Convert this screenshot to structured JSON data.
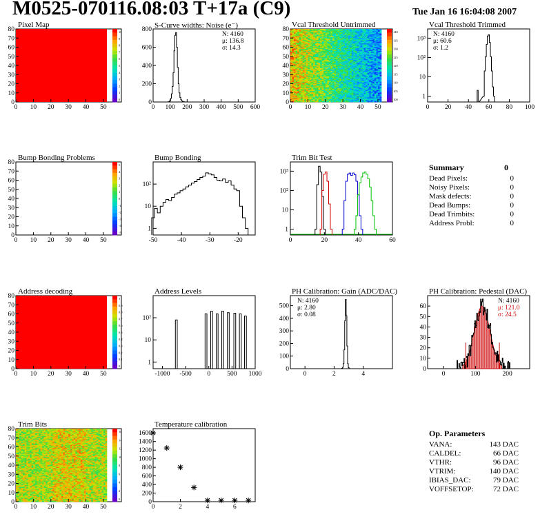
{
  "header": {
    "title": "M0525-070116.08:03 T+17a (C9)",
    "date": "Tue Jan 16 16:04:08 2007"
  },
  "panels": [
    {
      "title": "Pixel Map"
    },
    {
      "title": "S-Curve widths: Noise (e⁻)"
    },
    {
      "title": "Vcal Threshold Untrimmed"
    },
    {
      "title": "Vcal Threshold Trimmed"
    },
    {
      "title": "Bump Bonding Problems"
    },
    {
      "title": "Bump Bonding"
    },
    {
      "title": "Trim Bit Test"
    },
    {
      "title": "Address decoding"
    },
    {
      "title": "Address Levels"
    },
    {
      "title": "PH Calibration: Gain (ADC/DAC)"
    },
    {
      "title": "PH Calibration: Pedestal (DAC)"
    },
    {
      "title": "Trim Bits"
    },
    {
      "title": "Temperature calibration"
    }
  ],
  "summary": {
    "title": "Summary",
    "title_value": "0",
    "rows": [
      {
        "label": "Dead Pixels:",
        "value": "0"
      },
      {
        "label": "Noisy Pixels:",
        "value": "0"
      },
      {
        "label": "Mask defects:",
        "value": "0"
      },
      {
        "label": "Dead Bumps:",
        "value": "0"
      },
      {
        "label": "Dead Trimbits:",
        "value": "0"
      },
      {
        "label": "Address Probl:",
        "value": "0"
      }
    ]
  },
  "op_parameters": {
    "title": "Op. Parameters",
    "rows": [
      {
        "label": "VANA:",
        "value": "143 DAC"
      },
      {
        "label": "CALDEL:",
        "value": "66 DAC"
      },
      {
        "label": "VTHR:",
        "value": "96 DAC"
      },
      {
        "label": "VTRIM:",
        "value": "140 DAC"
      },
      {
        "label": "IBIAS_DAC:",
        "value": "79 DAC"
      },
      {
        "label": "VOFFSETOP:",
        "value": "72 DAC"
      }
    ]
  },
  "colors": {
    "map_red": "#ff0000",
    "line_black": "#000000",
    "trim_red": "#d00000",
    "trim_blue": "#0000d0",
    "trim_green": "#00c000",
    "pedestal_red": "#cc0000"
  },
  "chart_data": [
    {
      "id": "pixel_map",
      "type": "heatmap",
      "xlim": [
        0,
        52
      ],
      "ylim": [
        0,
        80
      ],
      "x_ticks": [
        "0",
        "10",
        "20",
        "30",
        "40",
        "50"
      ],
      "y_ticks": [
        "0",
        "10",
        "20",
        "30",
        "40",
        "50",
        "60",
        "70",
        "80"
      ],
      "fill": "uniform red",
      "palette_ticks": [
        "10",
        "9",
        "8",
        "7",
        "6",
        "5",
        "4",
        "3",
        "2",
        "1",
        "0"
      ]
    },
    {
      "id": "scurve",
      "type": "bar",
      "xlim": [
        0,
        600
      ],
      "ylim": [
        0,
        800
      ],
      "x_ticks": [
        "0",
        "100",
        "200",
        "300",
        "400",
        "500",
        "600"
      ],
      "y_ticks": [
        "0",
        "200",
        "400",
        "600",
        "800"
      ],
      "stats": [
        "N: 4160",
        "μ: 136.8",
        "σ: 14.3"
      ],
      "x": [
        90,
        95,
        100,
        105,
        110,
        115,
        120,
        125,
        130,
        135,
        140,
        145,
        150,
        155,
        160,
        165,
        170,
        175,
        180,
        185,
        190
      ],
      "values": [
        2,
        5,
        15,
        40,
        90,
        170,
        320,
        560,
        730,
        760,
        600,
        380,
        200,
        100,
        50,
        25,
        12,
        6,
        3,
        1,
        0
      ]
    },
    {
      "id": "vcal_untrimmed",
      "type": "heatmap",
      "xlim": [
        0,
        52
      ],
      "ylim": [
        0,
        80
      ],
      "x_ticks": [
        "0",
        "10",
        "20",
        "30",
        "40",
        "50"
      ],
      "y_ticks": [
        "0",
        "10",
        "20",
        "30",
        "40",
        "50",
        "60",
        "70",
        "80"
      ],
      "palette_ticks": [
        "140",
        "135",
        "130",
        "125",
        "120",
        "115",
        "110",
        "105",
        "100"
      ]
    },
    {
      "id": "vcal_trimmed",
      "type": "bar",
      "log_y": true,
      "xlim": [
        0,
        100
      ],
      "x_ticks": [
        "0",
        "20",
        "40",
        "60",
        "80",
        "100"
      ],
      "y_ticks": [
        "1",
        "10",
        "10²",
        "10³"
      ],
      "stats": [
        "N: 4160",
        "μ: 60.6",
        "σ: 1.2"
      ],
      "x": [
        49,
        50,
        55,
        56,
        57,
        58,
        59,
        60,
        61,
        62,
        63,
        64,
        65,
        66
      ],
      "values": [
        2,
        0,
        1,
        20,
        110,
        480,
        1300,
        1500,
        600,
        110,
        20,
        3,
        1,
        0
      ]
    },
    {
      "id": "bump_problems",
      "type": "heatmap",
      "xlim": [
        0,
        52
      ],
      "ylim": [
        0,
        80
      ],
      "x_ticks": [
        "0",
        "10",
        "20",
        "30",
        "40",
        "50"
      ],
      "y_ticks": [
        "0",
        "10",
        "20",
        "30",
        "40",
        "50",
        "60",
        "70",
        "80"
      ],
      "fill": "empty",
      "palette_ticks": [
        "5",
        "4",
        "3",
        "2",
        "1",
        "0",
        "-1",
        "-2",
        "-3",
        "-4",
        "-5"
      ]
    },
    {
      "id": "bump_bonding",
      "type": "bar",
      "log_y": true,
      "xlim": [
        -50,
        -14
      ],
      "x_ticks": [
        "-50",
        "-40",
        "-30",
        "-20"
      ],
      "y_ticks": [
        "1",
        "10",
        "10²"
      ],
      "x": [
        -50,
        -49,
        -48,
        -47,
        -46,
        -45,
        -44,
        -43,
        -42,
        -41,
        -40,
        -39,
        -38,
        -37,
        -36,
        -35,
        -34,
        -33,
        -32,
        -31,
        -30,
        -29,
        -28,
        -27,
        -26,
        -25,
        -24,
        -23,
        -22,
        -21,
        -20,
        -19,
        -18,
        -17,
        -16
      ],
      "values": [
        3,
        8,
        5,
        10,
        15,
        20,
        18,
        25,
        35,
        40,
        50,
        60,
        75,
        90,
        110,
        130,
        160,
        200,
        230,
        320,
        290,
        260,
        200,
        150,
        140,
        170,
        120,
        140,
        90,
        60,
        50,
        10,
        3,
        1,
        0.5
      ]
    },
    {
      "id": "trim_bit_test",
      "type": "line",
      "log_y": true,
      "xlim": [
        0,
        60
      ],
      "x_ticks": [
        "0",
        "20",
        "40",
        "60"
      ],
      "y_ticks": [
        "1",
        "10",
        "10²",
        "10³"
      ],
      "series": [
        {
          "color": "#000000",
          "x": [
            15,
            16,
            17,
            18,
            19,
            20
          ],
          "values": [
            1,
            200,
            1800,
            900,
            50,
            1
          ]
        },
        {
          "color": "#d00000",
          "x": [
            18,
            19,
            20,
            21,
            22,
            23,
            24
          ],
          "values": [
            1,
            100,
            700,
            900,
            300,
            20,
            1
          ]
        },
        {
          "color": "#0000d0",
          "x": [
            31,
            32,
            33,
            34,
            35,
            36,
            37,
            38,
            39,
            40,
            41,
            42
          ],
          "values": [
            1,
            30,
            300,
            700,
            800,
            600,
            800,
            650,
            300,
            60,
            5,
            1
          ]
        },
        {
          "color": "#00c000",
          "x": [
            38,
            39,
            40,
            41,
            42,
            43,
            44,
            45,
            46,
            47,
            48,
            49,
            50
          ],
          "values": [
            1,
            5,
            60,
            250,
            500,
            800,
            900,
            700,
            400,
            150,
            30,
            5,
            1
          ]
        }
      ]
    },
    {
      "id": "address_decoding",
      "type": "heatmap",
      "xlim": [
        0,
        52
      ],
      "ylim": [
        0,
        80
      ],
      "x_ticks": [
        "0",
        "10",
        "20",
        "30",
        "40",
        "50"
      ],
      "y_ticks": [
        "0",
        "10",
        "20",
        "30",
        "40",
        "50",
        "60",
        "70",
        "80"
      ],
      "fill": "uniform red",
      "palette_ticks": [
        "1",
        "0.9",
        "0.8",
        "0.7",
        "0.6",
        "0.5",
        "0.4",
        "0.3",
        "0.2",
        "0.1",
        "0"
      ]
    },
    {
      "id": "address_levels",
      "type": "bar",
      "log_y": true,
      "xlim": [
        -1200,
        1000
      ],
      "x_ticks": [
        "-1000",
        "-500",
        "0",
        "500",
        "1000"
      ],
      "y_ticks": [
        "1",
        "10",
        "10²"
      ],
      "peaks": [
        {
          "x": -700,
          "height": 80
        },
        {
          "x": -60,
          "height": 150
        },
        {
          "x": 60,
          "height": 200
        },
        {
          "x": 180,
          "height": 150
        },
        {
          "x": 300,
          "height": 200
        },
        {
          "x": 420,
          "height": 170
        },
        {
          "x": 560,
          "height": 160
        },
        {
          "x": 680,
          "height": 150
        },
        {
          "x": 790,
          "height": 120
        }
      ]
    },
    {
      "id": "ph_gain",
      "type": "bar",
      "xlim": [
        -1,
        6
      ],
      "ylim": [
        0,
        580
      ],
      "x_ticks": [
        "0",
        "2",
        "4"
      ],
      "y_ticks": [
        "0",
        "100",
        "200",
        "300",
        "400",
        "500"
      ],
      "stats": [
        "N: 4160",
        "μ: 2.80",
        "σ: 0.08"
      ],
      "x": [
        2.55,
        2.6,
        2.65,
        2.7,
        2.75,
        2.8,
        2.85,
        2.9,
        2.95,
        3.0,
        3.05
      ],
      "values": [
        3,
        10,
        40,
        150,
        380,
        550,
        420,
        180,
        40,
        8,
        1
      ]
    },
    {
      "id": "ph_pedestal",
      "type": "bar",
      "xlim": [
        -50,
        270
      ],
      "ylim": [
        0,
        70
      ],
      "x_ticks": [
        "0",
        "100",
        "200"
      ],
      "y_ticks": [
        "0",
        "10",
        "20",
        "30",
        "40",
        "50",
        "60"
      ],
      "stats": [
        "N: 4160",
        "μ: 121.0",
        "σ: 24.5"
      ],
      "gauss": {
        "mean": 121.0,
        "sigma": 24.5,
        "peak": 60
      }
    },
    {
      "id": "trim_bits",
      "type": "heatmap",
      "xlim": [
        0,
        52
      ],
      "ylim": [
        0,
        80
      ],
      "x_ticks": [
        "0",
        "10",
        "20",
        "30",
        "40",
        "50"
      ],
      "y_ticks": [
        "0",
        "10",
        "20",
        "30",
        "40",
        "50",
        "60",
        "70",
        "80"
      ],
      "palette_ticks": [
        "16",
        "14",
        "12",
        "10",
        "8",
        "6",
        "4",
        "2",
        "0"
      ]
    },
    {
      "id": "temperature",
      "type": "scatter",
      "xlim": [
        0,
        7.5
      ],
      "ylim": [
        0,
        1700
      ],
      "x_ticks": [
        "0",
        "2",
        "4",
        "6"
      ],
      "y_ticks": [
        "0",
        "200",
        "400",
        "600",
        "800",
        "1000",
        "1200",
        "1400",
        "1600"
      ],
      "x": [
        0,
        1,
        2,
        3,
        4,
        5,
        6,
        7
      ],
      "values": [
        1600,
        1250,
        800,
        330,
        30,
        30,
        30,
        30
      ]
    }
  ]
}
